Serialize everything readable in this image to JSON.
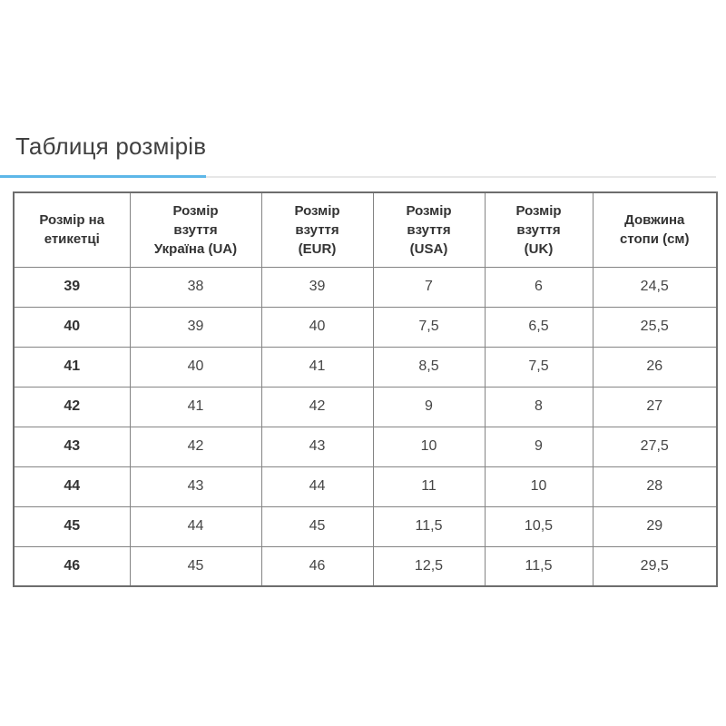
{
  "colors": {
    "accent_blue": "#5db7e8",
    "divider_gray": "#e7e7e7",
    "table_border": "#848484",
    "table_outer_border": "#6d6d6d",
    "title_text": "#404040",
    "header_text": "#333333",
    "cell_text": "#454545"
  },
  "tab": {
    "label": "Таблиця розмірів"
  },
  "table": {
    "headers": [
      "Розмір на\nетикетці",
      "Розмір\nвзуття\nУкраїна (UA)",
      "Розмір\nвзуття\n(EUR)",
      "Розмір\nвзуття\n(USA)",
      "Розмір\nвзуття\n(UK)",
      "Довжина\nстопи (см)"
    ],
    "rows": [
      [
        "39",
        "38",
        "39",
        "7",
        "6",
        "24,5"
      ],
      [
        "40",
        "39",
        "40",
        "7,5",
        "6,5",
        "25,5"
      ],
      [
        "41",
        "40",
        "41",
        "8,5",
        "7,5",
        "26"
      ],
      [
        "42",
        "41",
        "42",
        "9",
        "8",
        "27"
      ],
      [
        "43",
        "42",
        "43",
        "10",
        "9",
        "27,5"
      ],
      [
        "44",
        "43",
        "44",
        "11",
        "10",
        "28"
      ],
      [
        "45",
        "44",
        "45",
        "11,5",
        "10,5",
        "29"
      ],
      [
        "46",
        "45",
        "46",
        "12,5",
        "11,5",
        "29,5"
      ]
    ]
  }
}
